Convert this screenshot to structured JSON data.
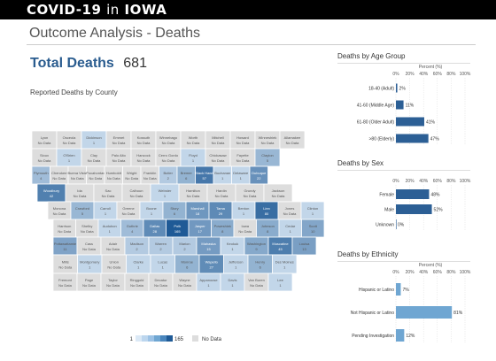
{
  "header": {
    "brand_left": "COVID-19",
    "brand_mid": "in",
    "brand_right": "IOWA"
  },
  "page_title": "Outcome Analysis - Deaths",
  "total": {
    "label": "Total Deaths",
    "value": "681"
  },
  "map": {
    "subtitle": "Reported Deaths by County",
    "legend_min": "1",
    "legend_max": "165",
    "legend_nodata": "No Data",
    "counties": [
      {
        "name": "Lyon",
        "val": "No Data"
      },
      {
        "name": "Osceola",
        "val": "No Data"
      },
      {
        "name": "Dickinson",
        "val": "1"
      },
      {
        "name": "Emmet",
        "val": "No Data"
      },
      {
        "name": "Kossuth",
        "val": "No Data"
      },
      {
        "name": "Winnebago",
        "val": "No Data"
      },
      {
        "name": "Worth",
        "val": "No Data"
      },
      {
        "name": "Mitchell",
        "val": "No Data"
      },
      {
        "name": "Howard",
        "val": "No Data"
      },
      {
        "name": "Winneshiek",
        "val": "No Data"
      },
      {
        "name": "Allamakee",
        "val": "No Data"
      },
      {
        "name": "Sioux",
        "val": "No Data"
      },
      {
        "name": "O'Brien",
        "val": "1"
      },
      {
        "name": "Clay",
        "val": "No Data"
      },
      {
        "name": "Palo Alto",
        "val": "No Data"
      },
      {
        "name": "Hancock",
        "val": "No Data"
      },
      {
        "name": "Cerro Gordo",
        "val": "No Data"
      },
      {
        "name": "Floyd",
        "val": "1"
      },
      {
        "name": "Chickasaw",
        "val": "No Data"
      },
      {
        "name": "Fayette",
        "val": "No Data"
      },
      {
        "name": "Clayton",
        "val": "5"
      },
      {
        "name": "Plymouth",
        "val": "4"
      },
      {
        "name": "Cherokee",
        "val": "No Data"
      },
      {
        "name": "Buena Vista",
        "val": "No Data"
      },
      {
        "name": "Pocahontas",
        "val": "No Data"
      },
      {
        "name": "Humboldt",
        "val": "No Data"
      },
      {
        "name": "Wright",
        "val": "No Data"
      },
      {
        "name": "Franklin",
        "val": "No Data"
      },
      {
        "name": "Butler",
        "val": "2"
      },
      {
        "name": "Bremer",
        "val": "6"
      },
      {
        "name": "Black Hawk",
        "val": "57"
      },
      {
        "name": "Buchanan",
        "val": "1"
      },
      {
        "name": "Delaware",
        "val": "1"
      },
      {
        "name": "Dubuque",
        "val": "22"
      },
      {
        "name": "Woodbury",
        "val": "42"
      },
      {
        "name": "Ida",
        "val": "No Data"
      },
      {
        "name": "Sac",
        "val": "No Data"
      },
      {
        "name": "Calhoun",
        "val": "No Data"
      },
      {
        "name": "Webster",
        "val": "1"
      },
      {
        "name": "Hamilton",
        "val": "No Data"
      },
      {
        "name": "Hardin",
        "val": "No Data"
      },
      {
        "name": "Grundy",
        "val": "No Data"
      },
      {
        "name": "Jackson",
        "val": "No Data"
      },
      {
        "name": "Monona",
        "val": "No Data"
      },
      {
        "name": "Crawford",
        "val": "5"
      },
      {
        "name": "Carroll",
        "val": "1"
      },
      {
        "name": "Greene",
        "val": "No Data"
      },
      {
        "name": "Boone",
        "val": "1"
      },
      {
        "name": "Story",
        "val": "6"
      },
      {
        "name": "Marshall",
        "val": "18"
      },
      {
        "name": "Tama",
        "val": "29"
      },
      {
        "name": "Benton",
        "val": "1"
      },
      {
        "name": "Linn",
        "val": "80"
      },
      {
        "name": "Jones",
        "val": "No Data"
      },
      {
        "name": "Clinton",
        "val": "1"
      },
      {
        "name": "Harrison",
        "val": "No Data"
      },
      {
        "name": "Shelby",
        "val": "No Data"
      },
      {
        "name": "Audubon",
        "val": "1"
      },
      {
        "name": "Guthrie",
        "val": "4"
      },
      {
        "name": "Dallas",
        "val": "28"
      },
      {
        "name": "Polk",
        "val": "165"
      },
      {
        "name": "Jasper",
        "val": "17"
      },
      {
        "name": "Poweshiek",
        "val": "8"
      },
      {
        "name": "Iowa",
        "val": "No Data"
      },
      {
        "name": "Johnson",
        "val": "8"
      },
      {
        "name": "Cedar",
        "val": "1"
      },
      {
        "name": "Scott",
        "val": "10"
      },
      {
        "name": "Pottawattamie",
        "val": "11"
      },
      {
        "name": "Cass",
        "val": "No Data"
      },
      {
        "name": "Adair",
        "val": "No Data"
      },
      {
        "name": "Madison",
        "val": "2"
      },
      {
        "name": "Warren",
        "val": "2"
      },
      {
        "name": "Marion",
        "val": "2"
      },
      {
        "name": "Mahaska",
        "val": "15"
      },
      {
        "name": "Keokuk",
        "val": "1"
      },
      {
        "name": "Washington",
        "val": "9"
      },
      {
        "name": "Muscatine",
        "val": "45"
      },
      {
        "name": "Louisa",
        "val": "13"
      },
      {
        "name": "Mills",
        "val": "No Data"
      },
      {
        "name": "Montgomery",
        "val": "1"
      },
      {
        "name": "Union",
        "val": "No Data"
      },
      {
        "name": "Clarke",
        "val": "1"
      },
      {
        "name": "Lucas",
        "val": "1"
      },
      {
        "name": "Monroe",
        "val": "6"
      },
      {
        "name": "Wapello",
        "val": "27"
      },
      {
        "name": "Jefferson",
        "val": "1"
      },
      {
        "name": "Henry",
        "val": "6"
      },
      {
        "name": "Des Moines",
        "val": "1"
      },
      {
        "name": "Fremont",
        "val": "No Data"
      },
      {
        "name": "Page",
        "val": "No Data"
      },
      {
        "name": "Taylor",
        "val": "No Data"
      },
      {
        "name": "Ringgold",
        "val": "No Data"
      },
      {
        "name": "Decatur",
        "val": "No Data"
      },
      {
        "name": "Wayne",
        "val": "No Data"
      },
      {
        "name": "Appanoose",
        "val": "1"
      },
      {
        "name": "Davis",
        "val": "1"
      },
      {
        "name": "Van Buren",
        "val": "No Data"
      },
      {
        "name": "Lee",
        "val": "1"
      }
    ]
  },
  "age_chart": {
    "title": "Deaths by Age Group",
    "axis_title": "Percent (%)",
    "ticks": [
      "0%",
      "20%",
      "40%",
      "60%",
      "80%",
      "100%"
    ],
    "chart_data": {
      "type": "bar",
      "categories": [
        "18-40 (Adult)",
        "41-60 (Middle Age)",
        "61-80 (Older Adult)",
        ">80 (Elderly)"
      ],
      "values": [
        2,
        11,
        41,
        47
      ],
      "xlim": [
        0,
        100
      ]
    },
    "labels": [
      "2%",
      "11%",
      "41%",
      "47%"
    ]
  },
  "sex_chart": {
    "title": "Deaths by Sex",
    "axis_title": "",
    "ticks": [
      "0%",
      "20%",
      "40%",
      "60%",
      "80%",
      "100%"
    ],
    "chart_data": {
      "type": "bar",
      "categories": [
        "Female",
        "Male",
        "Unknown"
      ],
      "values": [
        48,
        52,
        0
      ],
      "xlim": [
        0,
        100
      ]
    },
    "labels": [
      "48%",
      "52%",
      "0%"
    ]
  },
  "eth_chart": {
    "title": "Deaths by Ethnicity",
    "axis_title": "Percent (%)",
    "ticks": [
      "0%",
      "20%",
      "40%",
      "60%",
      "80%",
      "100%"
    ],
    "chart_data": {
      "type": "bar",
      "categories": [
        "Hispanic or Latino",
        "Not Hispanic or Latino",
        "Pending Investigation"
      ],
      "values": [
        7,
        81,
        12
      ],
      "xlim": [
        0,
        100
      ]
    },
    "labels": [
      "7%",
      "81%",
      "12%"
    ]
  },
  "colors": {
    "dark_bar": "#2c5f95",
    "light_bar": "#6fa6d2",
    "nodata": "#dddddd",
    "scale_low": "#dbe9f6",
    "scale_high": "#1f5a96"
  }
}
